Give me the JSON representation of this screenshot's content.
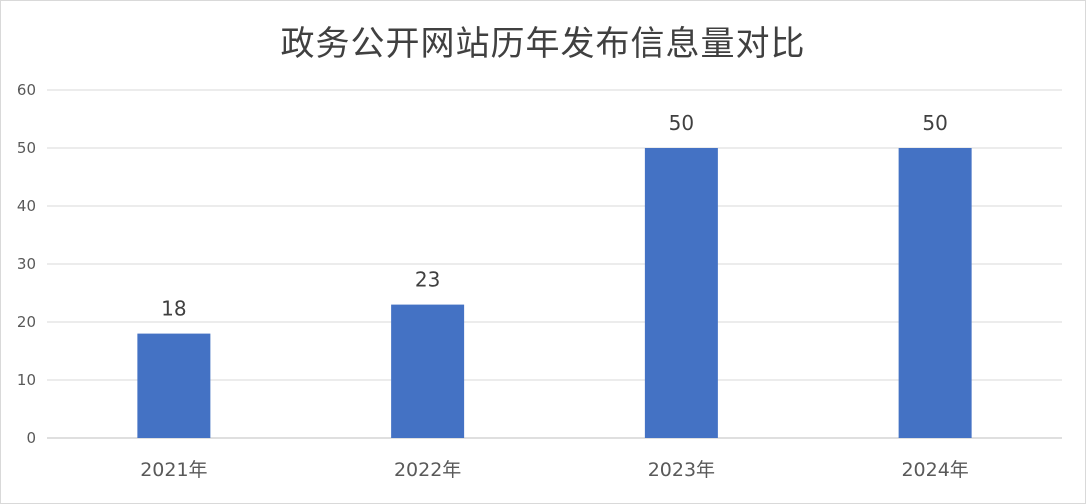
{
  "chart_data": {
    "type": "bar",
    "title": "政务公开网站历年发布信息量对比",
    "xlabel": "",
    "ylabel": "",
    "categories": [
      "2021年",
      "2022年",
      "2023年",
      "2024年"
    ],
    "values": [
      18,
      23,
      50,
      50
    ],
    "data_labels": [
      "18",
      "23",
      "50",
      "50"
    ],
    "yticks": [
      "0",
      "10",
      "20",
      "30",
      "40",
      "50",
      "60"
    ],
    "ylim": [
      0,
      60
    ],
    "grid": true,
    "legend": false,
    "colors": {
      "bar": "#4472C4",
      "grid": "#d9d9d9",
      "axis": "#bfbfbf"
    }
  }
}
